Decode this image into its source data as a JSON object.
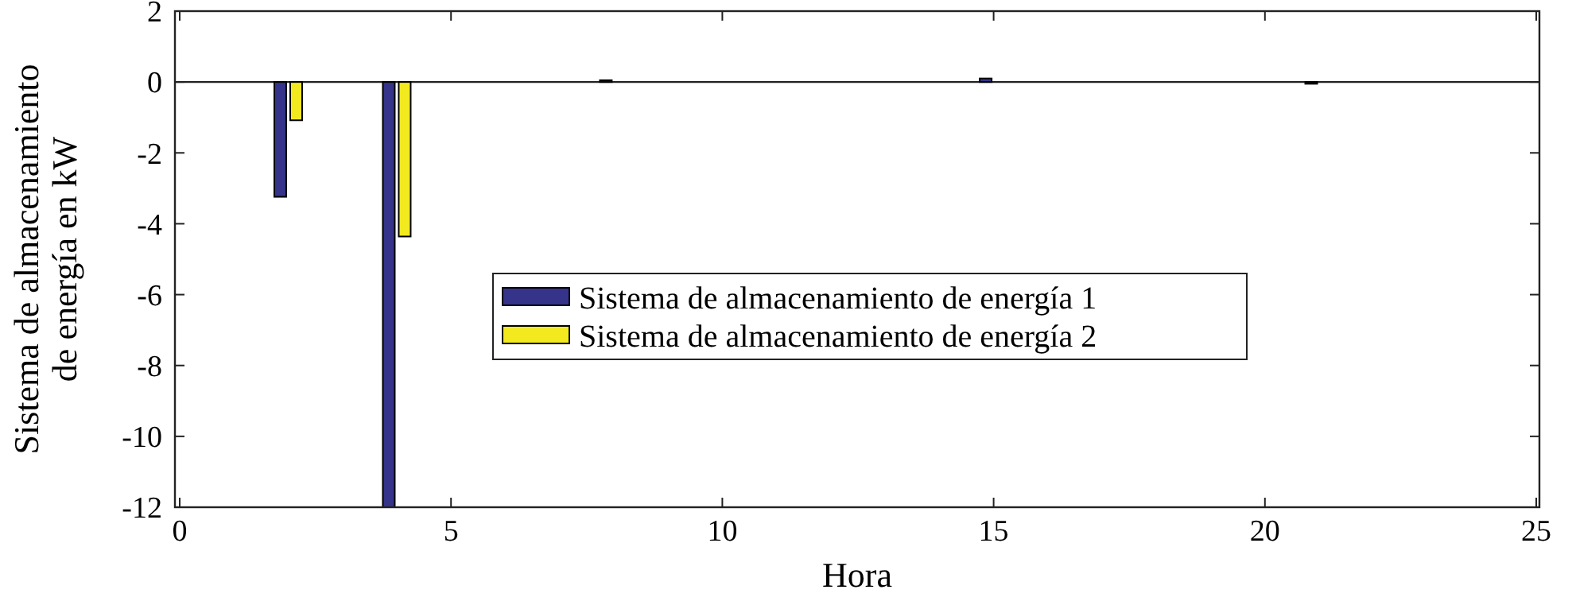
{
  "chart_data": {
    "type": "bar",
    "xlabel": "Hora",
    "ylabel": "Sistema de almacenamiento\nde energía en kW",
    "x": [
      2,
      4,
      8,
      15,
      21
    ],
    "series": [
      {
        "name": "Sistema de almacenamiento de energía 1",
        "color": "#35348a",
        "values": [
          -3.24,
          -12,
          0.05,
          0.1,
          -0.05
        ]
      },
      {
        "name": "Sistema de almacenamiento de energía 2",
        "color": "#f2ea1f",
        "values": [
          -1.08,
          -4.36,
          0,
          0,
          0
        ]
      }
    ],
    "xlim": [
      0,
      25
    ],
    "xticks": [
      0,
      5,
      10,
      15,
      20,
      25
    ],
    "ylim": [
      -12,
      2
    ],
    "yticks": [
      2,
      0,
      -2,
      -4,
      -6,
      -8,
      -10,
      -12
    ],
    "legend": "center"
  }
}
